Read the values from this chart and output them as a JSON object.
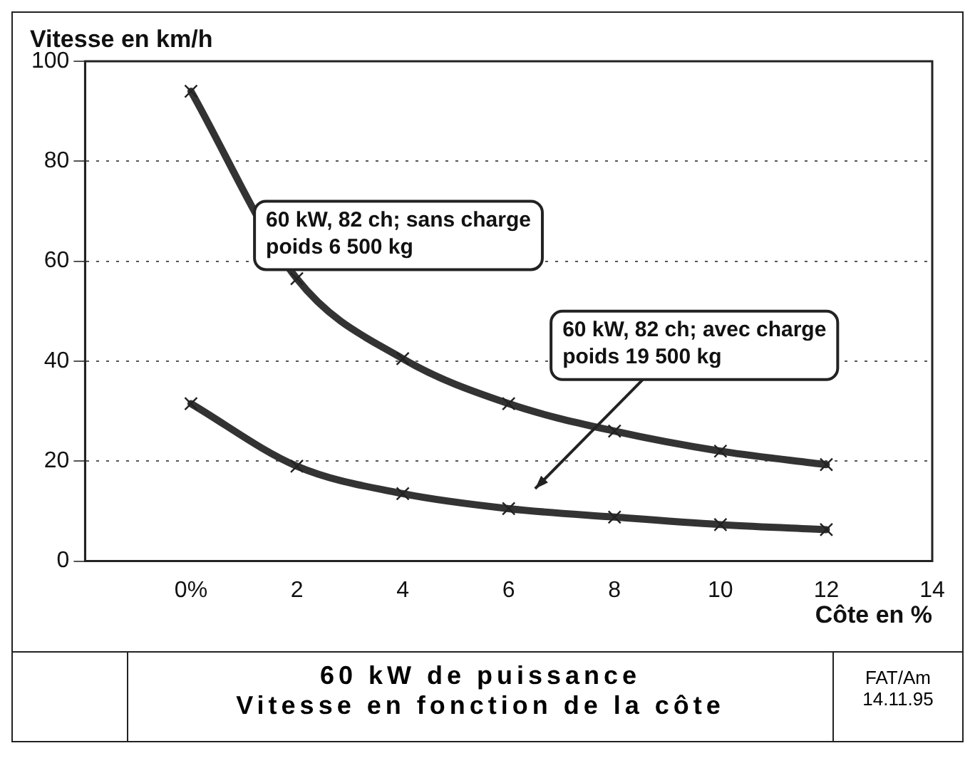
{
  "chart_data": {
    "type": "line",
    "title": "60 kW de puissance",
    "subtitle": "Vitesse en fonction de la côte",
    "xlabel": "Côte en %",
    "ylabel": "Vitesse en km/h",
    "x": [
      0,
      2,
      4,
      6,
      8,
      10,
      12
    ],
    "series": [
      {
        "name": "60 kW, 82 ch; sans charge\npoids 6 500 kg",
        "color": "#333333",
        "values": [
          94,
          56.5,
          40.5,
          31.5,
          26,
          22,
          19.3
        ]
      },
      {
        "name": "60 kW, 82 ch; avec charge\npoids 19 500 kg",
        "color": "#333333",
        "values": [
          31.5,
          19,
          13.5,
          10.5,
          8.8,
          7.3,
          6.3
        ]
      }
    ],
    "xlim": [
      -2,
      14
    ],
    "xticks": [
      {
        "value": 0,
        "label": "0%"
      },
      2,
      4,
      6,
      8,
      10,
      12,
      14
    ],
    "ylim": [
      0,
      100
    ],
    "yticks": [
      0,
      20,
      40,
      60,
      80,
      100
    ],
    "grid": "y",
    "marker": "cross",
    "line_style": "solid",
    "legend": false,
    "annotations": [
      "FAT/Am\n14.11.95"
    ]
  }
}
